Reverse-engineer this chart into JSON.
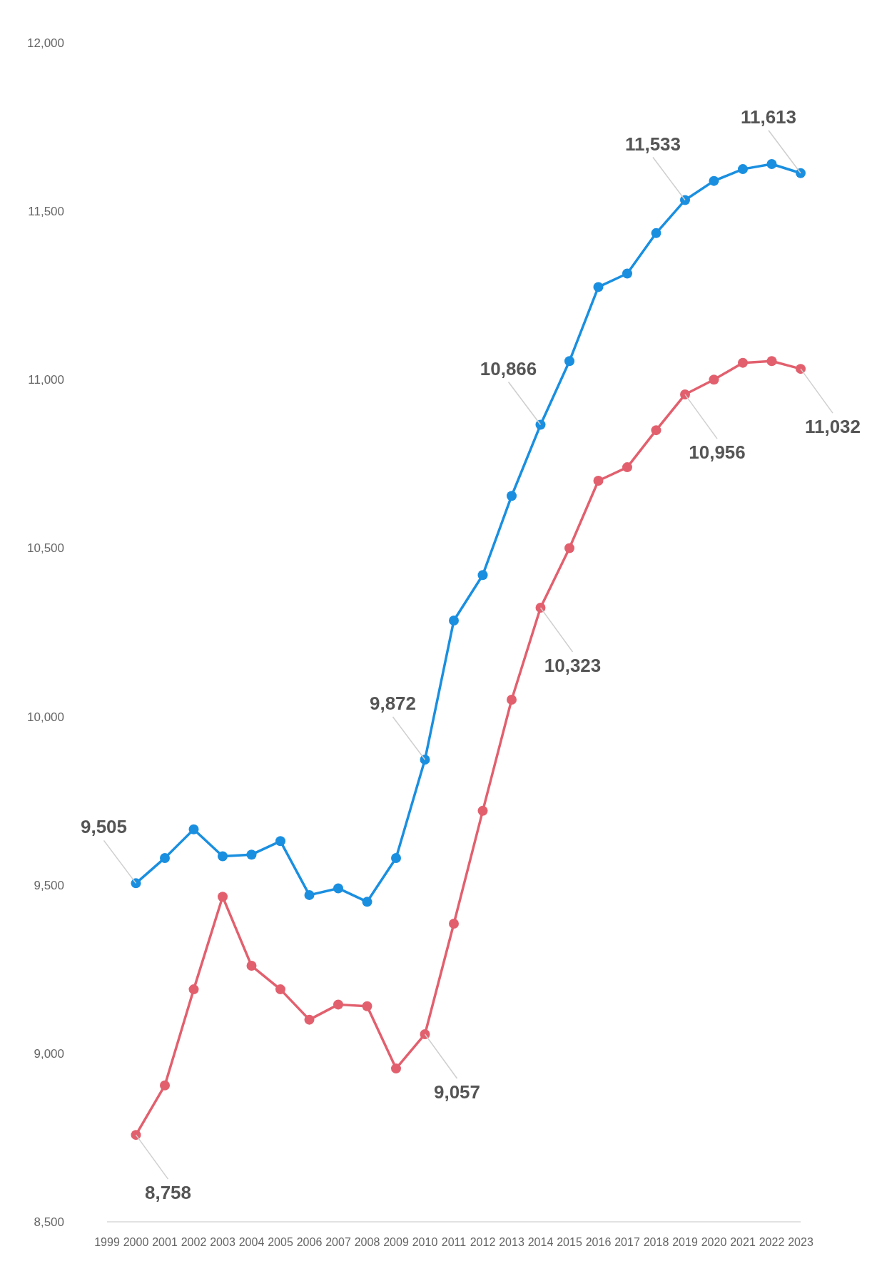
{
  "chart_data": {
    "type": "line",
    "x": [
      2000,
      2001,
      2002,
      2003,
      2004,
      2005,
      2006,
      2007,
      2008,
      2009,
      2010,
      2011,
      2012,
      2013,
      2014,
      2015,
      2016,
      2017,
      2018,
      2019,
      2020,
      2021,
      2022,
      2023
    ],
    "series": [
      {
        "color": "#1a8fe0",
        "values": [
          9505,
          9580,
          9665,
          9585,
          9590,
          9630,
          9470,
          9490,
          9450,
          9580,
          9872,
          10285,
          10420,
          10655,
          10866,
          11055,
          11275,
          11315,
          11435,
          11533,
          11590,
          11625,
          11640,
          11613
        ]
      },
      {
        "color": "#e2606e",
        "values": [
          8758,
          8905,
          9190,
          9465,
          9260,
          9190,
          9100,
          9145,
          9140,
          8955,
          9057,
          9385,
          9720,
          10050,
          10323,
          10500,
          10700,
          10740,
          10850,
          10956,
          11000,
          11050,
          11055,
          11032
        ]
      }
    ],
    "xlim": [
      1999,
      2023
    ],
    "xticks": [
      1999,
      2000,
      2001,
      2002,
      2003,
      2004,
      2005,
      2006,
      2007,
      2008,
      2009,
      2010,
      2011,
      2012,
      2013,
      2014,
      2015,
      2016,
      2017,
      2018,
      2019,
      2020,
      2021,
      2022,
      2023
    ],
    "ylim": [
      8500,
      12000
    ],
    "yticks": [
      {
        "value": 8500,
        "label": "8,500"
      },
      {
        "value": 9000,
        "label": "9,000"
      },
      {
        "value": 9500,
        "label": "9,500"
      },
      {
        "value": 10000,
        "label": "10,000"
      },
      {
        "value": 10500,
        "label": "10,500"
      },
      {
        "value": 11000,
        "label": "11,000"
      },
      {
        "value": 11500,
        "label": "11,500"
      },
      {
        "value": 12000,
        "label": "12,000"
      }
    ],
    "grid": false,
    "marker": "circle",
    "line_style": "solid",
    "annotations": [
      {
        "text": "9,505",
        "x": 2000,
        "y": 9505
      },
      {
        "text": "9,872",
        "x": 2010,
        "y": 9872
      },
      {
        "text": "10,866",
        "x": 2014,
        "y": 10866
      },
      {
        "text": "11,533",
        "x": 2019,
        "y": 11533
      },
      {
        "text": "11,613",
        "x": 2023,
        "y": 11613
      },
      {
        "text": "8,758",
        "x": 2000,
        "y": 8758
      },
      {
        "text": "9,057",
        "x": 2010,
        "y": 9057
      },
      {
        "text": "10,323",
        "x": 2014,
        "y": 10323
      },
      {
        "text": "10,956",
        "x": 2019,
        "y": 10956
      },
      {
        "text": "11,032",
        "x": 2023,
        "y": 11032
      }
    ]
  }
}
